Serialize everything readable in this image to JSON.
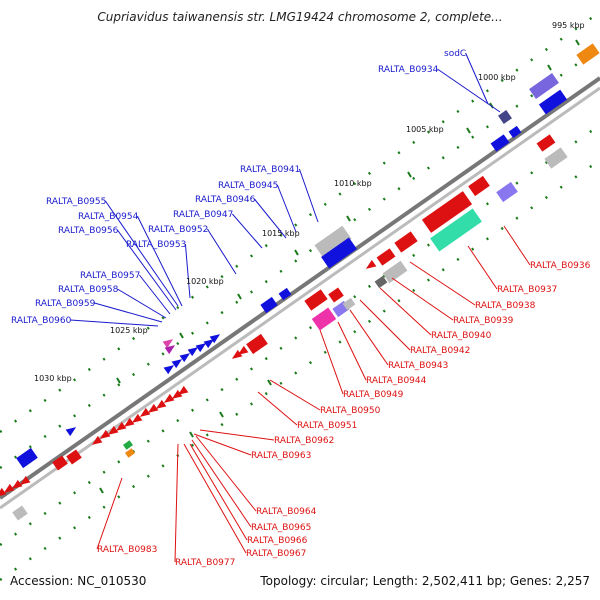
{
  "title": "Cupriavidus taiwanensis str. LMG19424 chromosome 2, complete...",
  "accession_text": "Accession: NC_010530",
  "summary_text": "Topology: circular; Length: 2,502,411 bp; Genes: 2,257",
  "colors": {
    "forward_label": "#1a1acc",
    "reverse_label": "#dd1111",
    "backbone": "#777777",
    "tick": "#1a7a1a",
    "forward_gene": "#1111dd",
    "reverse_gene": "#dd1111"
  },
  "tick_labels": [
    "995 kbp",
    "1000 kbp",
    "1005 kbp",
    "1010 kbp",
    "1015 kbp",
    "1020 kbp",
    "1025 kbp",
    "1030 kbp"
  ],
  "forward_labels": [
    "sodC",
    "RALTA_B0934",
    "RALTA_B0941",
    "RALTA_B0945",
    "RALTA_B0946",
    "RALTA_B0947",
    "RALTA_B0952",
    "RALTA_B0953",
    "RALTA_B0954",
    "RALTA_B0955",
    "RALTA_B0956",
    "RALTA_B0957",
    "RALTA_B0958",
    "RALTA_B0959",
    "RALTA_B0960"
  ],
  "reverse_labels": [
    "RALTA_B0936",
    "RALTA_B0937",
    "RALTA_B0938",
    "RALTA_B0939",
    "RALTA_B0940",
    "RALTA_B0942",
    "RALTA_B0943",
    "RALTA_B0944",
    "RALTA_B0949",
    "RALTA_B0950",
    "RALTA_B0951",
    "RALTA_B0962",
    "RALTA_B0963",
    "RALTA_B0964",
    "RALTA_B0965",
    "RALTA_B0966",
    "RALTA_B0967",
    "RALTA_B0977",
    "RALTA_B0983"
  ]
}
